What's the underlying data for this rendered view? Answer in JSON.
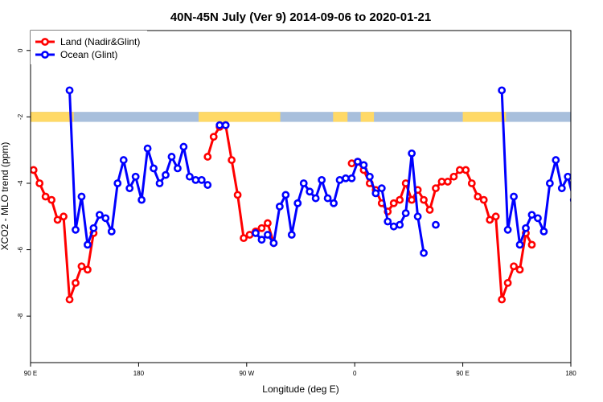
{
  "chart_data": {
    "type": "line",
    "title": "40N-45N July (Ver 9)   2014-09-06 to 2020-01-21",
    "xlabel": "Longitude (deg E)",
    "ylabel": "XCO2 - MLO trend (ppm)",
    "xlim": [
      90,
      540
    ],
    "ylim": [
      -9.4,
      0.6
    ],
    "x_ticks": [
      {
        "value": 90,
        "label": "90 E"
      },
      {
        "value": 180,
        "label": "180"
      },
      {
        "value": 270,
        "label": "90 W"
      },
      {
        "value": 360,
        "label": "0"
      },
      {
        "value": 450,
        "label": "90 E"
      },
      {
        "value": 540,
        "label": "180"
      }
    ],
    "y_ticks": [
      {
        "value": 0,
        "label": "0"
      },
      {
        "value": -2,
        "label": "-2"
      },
      {
        "value": -4,
        "label": "-4"
      },
      {
        "value": -6,
        "label": "-6"
      },
      {
        "value": -8,
        "label": "-8"
      }
    ],
    "legend_position": "top-left",
    "grid": false,
    "land_ocean_strip": {
      "y_range": [
        -2.15,
        -1.85
      ],
      "land_color": "#FFD966",
      "ocean_color": "#A8BFDC"
    },
    "series": [
      {
        "name": "Land (Nadir&Glint)",
        "color": "#FF0000",
        "segments": [
          {
            "x": [
              92.5,
              97.5,
              102.5,
              107.5,
              112.5,
              117.5,
              122.5,
              127.5,
              132.5,
              137.5,
              142.5
            ],
            "y": [
              -3.6,
              -4.0,
              -4.4,
              -4.5,
              -5.1,
              -5.0,
              -7.5,
              -7.0,
              -6.5,
              -6.6,
              -5.5
            ]
          },
          {
            "x": [
              237.5,
              242.5,
              247.5,
              252.5,
              257.5,
              262.5,
              267.5,
              272.5,
              277.5,
              282.5,
              287.5,
              292.5
            ],
            "y": [
              -3.2,
              -2.6,
              -2.3,
              -2.25,
              -3.3,
              -4.35,
              -5.65,
              -5.55,
              -5.45,
              -5.35,
              -5.2,
              -5.8
            ]
          },
          {
            "x": [
              357.5,
              362.5,
              367.5,
              372.5,
              377.5,
              382.5,
              387.5,
              392.5,
              397.5,
              402.5,
              407.5,
              412.5,
              417.5,
              422.5,
              427.5,
              432.5,
              437.5,
              442.5,
              447.5,
              452.5,
              457.5,
              462.5,
              467.5,
              472.5,
              477.5,
              482.5,
              487.5,
              492.5,
              497.5,
              502.5,
              507.5
            ],
            "y": [
              -3.4,
              -3.35,
              -3.6,
              -4.0,
              -4.2,
              -4.6,
              -4.85,
              -4.6,
              -4.5,
              -4.0,
              -4.5,
              -4.2,
              -4.5,
              -4.8,
              -4.15,
              -3.95,
              -3.95,
              -3.8,
              -3.6,
              -3.6,
              -4.0,
              -4.4,
              -4.5,
              -5.1,
              -5.0,
              -7.5,
              -7.0,
              -6.5,
              -6.6,
              -5.5,
              -5.85
            ]
          }
        ]
      },
      {
        "name": "Ocean (Glint)",
        "color": "#0000FF",
        "segments": [
          {
            "x": [
              122.5,
              127.5,
              132.5,
              137.5,
              142.5,
              147.5,
              152.5,
              157.5,
              162.5,
              167.5,
              172.5,
              177.5,
              182.5,
              187.5,
              192.5,
              197.5,
              202.5,
              207.5,
              212.5,
              217.5,
              222.5,
              227.5,
              232.5,
              237.5
            ],
            "y": [
              -1.2,
              -5.4,
              -4.4,
              -5.85,
              -5.35,
              -4.95,
              -5.05,
              -5.45,
              -4.0,
              -3.3,
              -4.15,
              -3.8,
              -4.5,
              -2.95,
              -3.55,
              -4.0,
              -3.75,
              -3.2,
              -3.55,
              -2.9,
              -3.8,
              -3.9,
              -3.9,
              -4.05
            ]
          },
          {
            "x": [
              247.5,
              252.5
            ],
            "y": [
              -2.25,
              -2.25
            ]
          },
          {
            "x": [
              277.5,
              282.5,
              287.5,
              292.5,
              297.5,
              302.5,
              307.5,
              312.5,
              317.5,
              322.5,
              327.5,
              332.5,
              337.5,
              342.5,
              347.5,
              352.5,
              357.5,
              362.5,
              367.5,
              372.5,
              377.5,
              382.5,
              387.5,
              392.5,
              397.5,
              402.5,
              407.5,
              412.5,
              417.5
            ],
            "y": [
              -5.5,
              -5.7,
              -5.55,
              -5.8,
              -4.7,
              -4.35,
              -5.55,
              -4.6,
              -4.0,
              -4.25,
              -4.45,
              -3.9,
              -4.45,
              -4.6,
              -3.9,
              -3.85,
              -3.85,
              -3.35,
              -3.45,
              -3.8,
              -4.3,
              -4.15,
              -5.15,
              -5.3,
              -5.25,
              -4.9,
              -3.1,
              -5.0,
              -6.1
            ]
          },
          {
            "x": [
              427.5
            ],
            "y": [
              -5.25
            ]
          },
          {
            "x": [
              482.5,
              487.5,
              492.5,
              497.5,
              502.5,
              507.5,
              512.5,
              517.5,
              522.5,
              527.5,
              532.5,
              537.5,
              542.5
            ],
            "y": [
              -1.2,
              -5.4,
              -4.4,
              -5.85,
              -5.35,
              -4.95,
              -5.05,
              -5.45,
              -4.0,
              -3.3,
              -4.15,
              -3.8,
              -4.5
            ]
          }
        ]
      }
    ]
  }
}
